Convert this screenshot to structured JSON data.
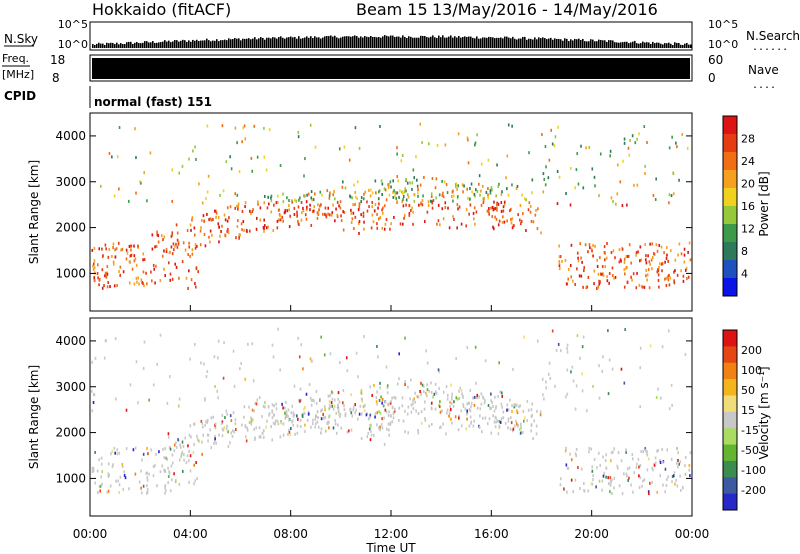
{
  "header": {
    "station": "Hokkaido (fitACF)",
    "beam": "Beam 15",
    "date_range": "13/May/2016 - 14/May/2016"
  },
  "noise_panel": {
    "left_label": "N.Sky",
    "right_label": "N.Search",
    "right_dots": "......",
    "left_ticks": [
      "10^5",
      "10^0"
    ],
    "right_ticks": [
      "10^5",
      "10^0"
    ]
  },
  "freq_panel": {
    "left_label_top": "Freq.",
    "left_label_unit": "[MHz]",
    "left_ticks": [
      "18",
      "8"
    ],
    "right_ticks": [
      "60",
      "0"
    ],
    "right_label": "Nave",
    "right_dots": "...."
  },
  "cpid_panel": {
    "label": "CPID",
    "value": "normal (fast) 151"
  },
  "colors": {
    "power_scale": [
      "#0a14e6",
      "#1e50be",
      "#2d7a5a",
      "#3c9a4a",
      "#96c83c",
      "#f0d21e",
      "#f5a01e",
      "#f06e14",
      "#e63c14",
      "#dc1414"
    ],
    "velocity_scale": [
      "#2828c8",
      "#3c5aa0",
      "#3c8c50",
      "#64b432",
      "#aadc64",
      "#c8c8c8",
      "#f0dc78",
      "#f5b41e",
      "#f08214",
      "#e64614",
      "#dc1414"
    ]
  },
  "chart_data": [
    {
      "type": "heatmap",
      "title": "Power",
      "ylabel": "Slant Range [km]",
      "xlabel": "Time UT",
      "ylim": [
        180,
        4500
      ],
      "yticks": [
        "1000",
        "2000",
        "3000",
        "4000"
      ],
      "xticks": [
        "00:00",
        "04:00",
        "08:00",
        "12:00",
        "16:00",
        "20:00",
        "00:00"
      ],
      "colorbar_label": "Power [dB]",
      "colorbar_ticks": [
        "28",
        "24",
        "20",
        "16",
        "12",
        "8",
        "4"
      ],
      "colorbar_range": [
        0,
        30
      ]
    },
    {
      "type": "heatmap",
      "title": "Velocity",
      "ylabel": "Slant Range [km]",
      "xlabel": "Time UT",
      "ylim": [
        180,
        4500
      ],
      "yticks": [
        "1000",
        "2000",
        "3000",
        "4000"
      ],
      "xticks": [
        "00:00",
        "04:00",
        "08:00",
        "12:00",
        "16:00",
        "20:00",
        "00:00"
      ],
      "colorbar_label": "Velocity [m s⁻¹]",
      "colorbar_ticks": [
        "200",
        "100",
        "50",
        "15",
        "-15",
        "-50",
        "-100",
        "-200"
      ],
      "colorbar_range": [
        -250,
        250
      ]
    }
  ]
}
